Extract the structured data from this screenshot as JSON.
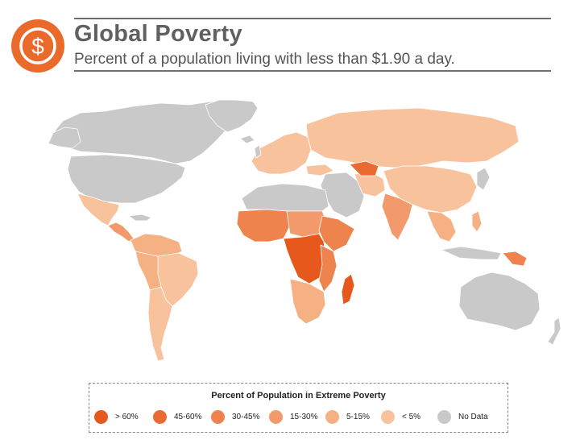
{
  "header": {
    "title": "Global Poverty",
    "subtitle": "Percent of a population living with less than $1.90 a day.",
    "logo_icon": "dollar-coin-icon",
    "logo_color": "#ea6a2c"
  },
  "legend": {
    "title": "Percent of Population in Extreme Poverty",
    "items": [
      {
        "label": "> 60%",
        "color": "#e7581d"
      },
      {
        "label": "45-60%",
        "color": "#eb6a32"
      },
      {
        "label": "30-45%",
        "color": "#ef834d"
      },
      {
        "label": "15-30%",
        "color": "#f29a6b"
      },
      {
        "label": "5-15%",
        "color": "#f5b184"
      },
      {
        "label": "< 5%",
        "color": "#f8c39c"
      },
      {
        "label": "No Data",
        "color": "#c9c9c9"
      }
    ]
  },
  "map": {
    "regions": [
      {
        "name": "Canada",
        "category": "No Data"
      },
      {
        "name": "United States",
        "category": "No Data"
      },
      {
        "name": "Greenland",
        "category": "No Data"
      },
      {
        "name": "Mexico",
        "category": "< 5%"
      },
      {
        "name": "Central America",
        "category": "15-30%"
      },
      {
        "name": "South America",
        "category": "< 5%"
      },
      {
        "name": "Europe",
        "category": "< 5%"
      },
      {
        "name": "Russia",
        "category": "< 5%"
      },
      {
        "name": "Middle East",
        "category": "No Data"
      },
      {
        "name": "Central Asia",
        "category": "45-60%"
      },
      {
        "name": "China",
        "category": "< 5%"
      },
      {
        "name": "India",
        "category": "15-30%"
      },
      {
        "name": "Southeast Asia",
        "category": "5-15%"
      },
      {
        "name": "West Africa",
        "category": "30-45%"
      },
      {
        "name": "Central Africa",
        "category": "> 60%"
      },
      {
        "name": "East Africa",
        "category": "30-45%"
      },
      {
        "name": "Southern Africa",
        "category": "5-15%"
      },
      {
        "name": "Madagascar",
        "category": "> 60%"
      },
      {
        "name": "Australia",
        "category": "No Data"
      },
      {
        "name": "Papua New Guinea",
        "category": "30-45%"
      }
    ]
  }
}
